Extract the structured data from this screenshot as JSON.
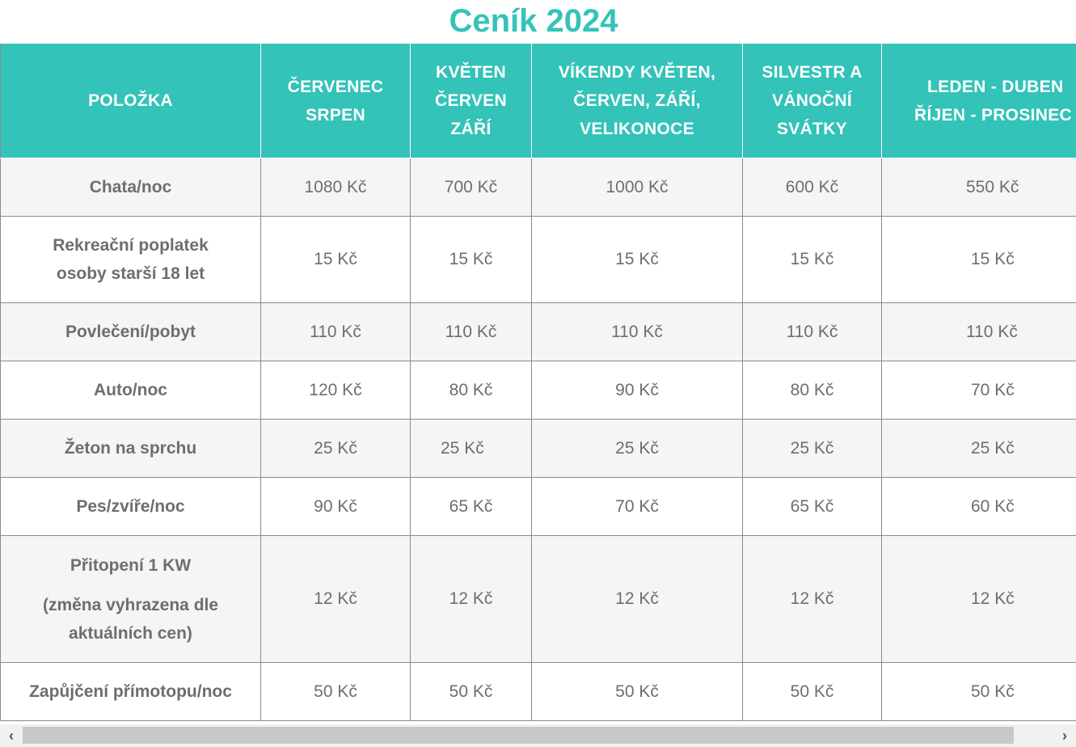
{
  "title": "Ceník 2024",
  "table": {
    "headers": [
      [
        "POLOŽKA"
      ],
      [
        "ČERVENEC",
        "SRPEN"
      ],
      [
        "KVĚTEN",
        "ČERVEN",
        "ZÁŘÍ"
      ],
      [
        "VÍKENDY KVĚTEN,",
        "ČERVEN, ZÁŘÍ,",
        "VELIKONOCE"
      ],
      [
        "SILVESTR A",
        "VÁNOČNÍ",
        "SVÁTKY"
      ],
      [
        "LEDEN - DUBEN",
        "ŘÍJEN - PROSINEC"
      ]
    ],
    "rows": [
      {
        "label": [
          "Chata/noc"
        ],
        "values": [
          "1080 Kč",
          "700 Kč",
          "1000 Kč",
          "600 Kč",
          "550 Kč"
        ]
      },
      {
        "label": [
          "Rekreační poplatek",
          "osoby starší 18 let"
        ],
        "values": [
          "15 Kč",
          "15 Kč",
          "15 Kč",
          "15 Kč",
          "15 Kč"
        ]
      },
      {
        "label": [
          "Povlečení/pobyt"
        ],
        "values": [
          "110 Kč",
          "110 Kč",
          "110 Kč",
          "110 Kč",
          "110 Kč"
        ]
      },
      {
        "label": [
          "Auto/noc"
        ],
        "values": [
          "120 Kč",
          "80 Kč",
          "90 Kč",
          "80 Kč",
          "70 Kč"
        ]
      },
      {
        "label": [
          "Žeton na sprchu"
        ],
        "values": [
          "25 Kč",
          "25 Kč",
          "25 Kč",
          "25 Kč",
          "25 Kč"
        ]
      },
      {
        "label": [
          "Pes/zvíře/noc"
        ],
        "values": [
          "90 Kč",
          "65 Kč",
          "70 Kč",
          "65 Kč",
          "60 Kč"
        ]
      },
      {
        "label": [
          "Přitopení 1 KW",
          "(změna vyhrazena dle",
          "aktuálních cen)"
        ],
        "values": [
          "12 Kč",
          "12 Kč",
          "12 Kč",
          "12 Kč",
          "12 Kč"
        ]
      },
      {
        "label": [
          "Zapůjčení přímotopu/noc"
        ],
        "values": [
          "50 Kč",
          "50 Kč",
          "50 Kč",
          "50 Kč",
          "50 Kč"
        ]
      }
    ]
  },
  "scrollbar": {
    "left_arrow": "‹",
    "right_arrow": "›"
  },
  "colors": {
    "accent": "#33c3b8",
    "text": "#6e6e6e",
    "row_alt": "#f5f5f5"
  }
}
